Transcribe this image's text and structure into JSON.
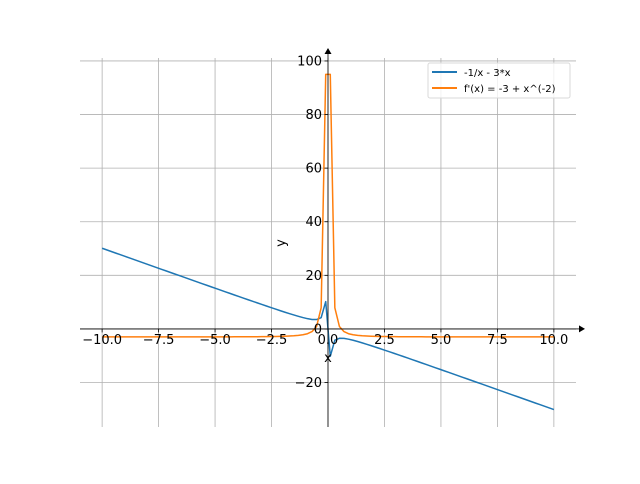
{
  "chart_data": {
    "type": "line",
    "title": "",
    "xlabel": "x",
    "ylabel": "y",
    "xlim": [
      -10.98,
      10.98
    ],
    "ylim": [
      -36.6,
      101.1
    ],
    "grid": true,
    "legend_position": "top-right",
    "x_sampling": {
      "start": -10,
      "stop": 10,
      "num_points": 100
    },
    "x_ticks": [
      -10,
      -7.5,
      -5,
      -2.5,
      0,
      2.5,
      5,
      7.5,
      10
    ],
    "x_tick_labels": [
      "−10.0",
      "−7.5",
      "−5.0",
      "−2.5",
      "0.0",
      "2.5",
      "5.0",
      "7.5",
      "10.0"
    ],
    "y_ticks": [
      -20,
      0,
      20,
      40,
      60,
      80,
      100
    ],
    "y_tick_labels": [
      "−20",
      "0",
      "20",
      "40",
      "60",
      "80",
      "100"
    ],
    "series": [
      {
        "name": "-1/x - 3*x",
        "expression": "-1/x - 3*x",
        "color": "#1f77b4"
      },
      {
        "name": "f'(x) = -3 + x^(-2)",
        "expression": "-3 + x^(-2)",
        "color": "#ff7f0e"
      }
    ]
  }
}
